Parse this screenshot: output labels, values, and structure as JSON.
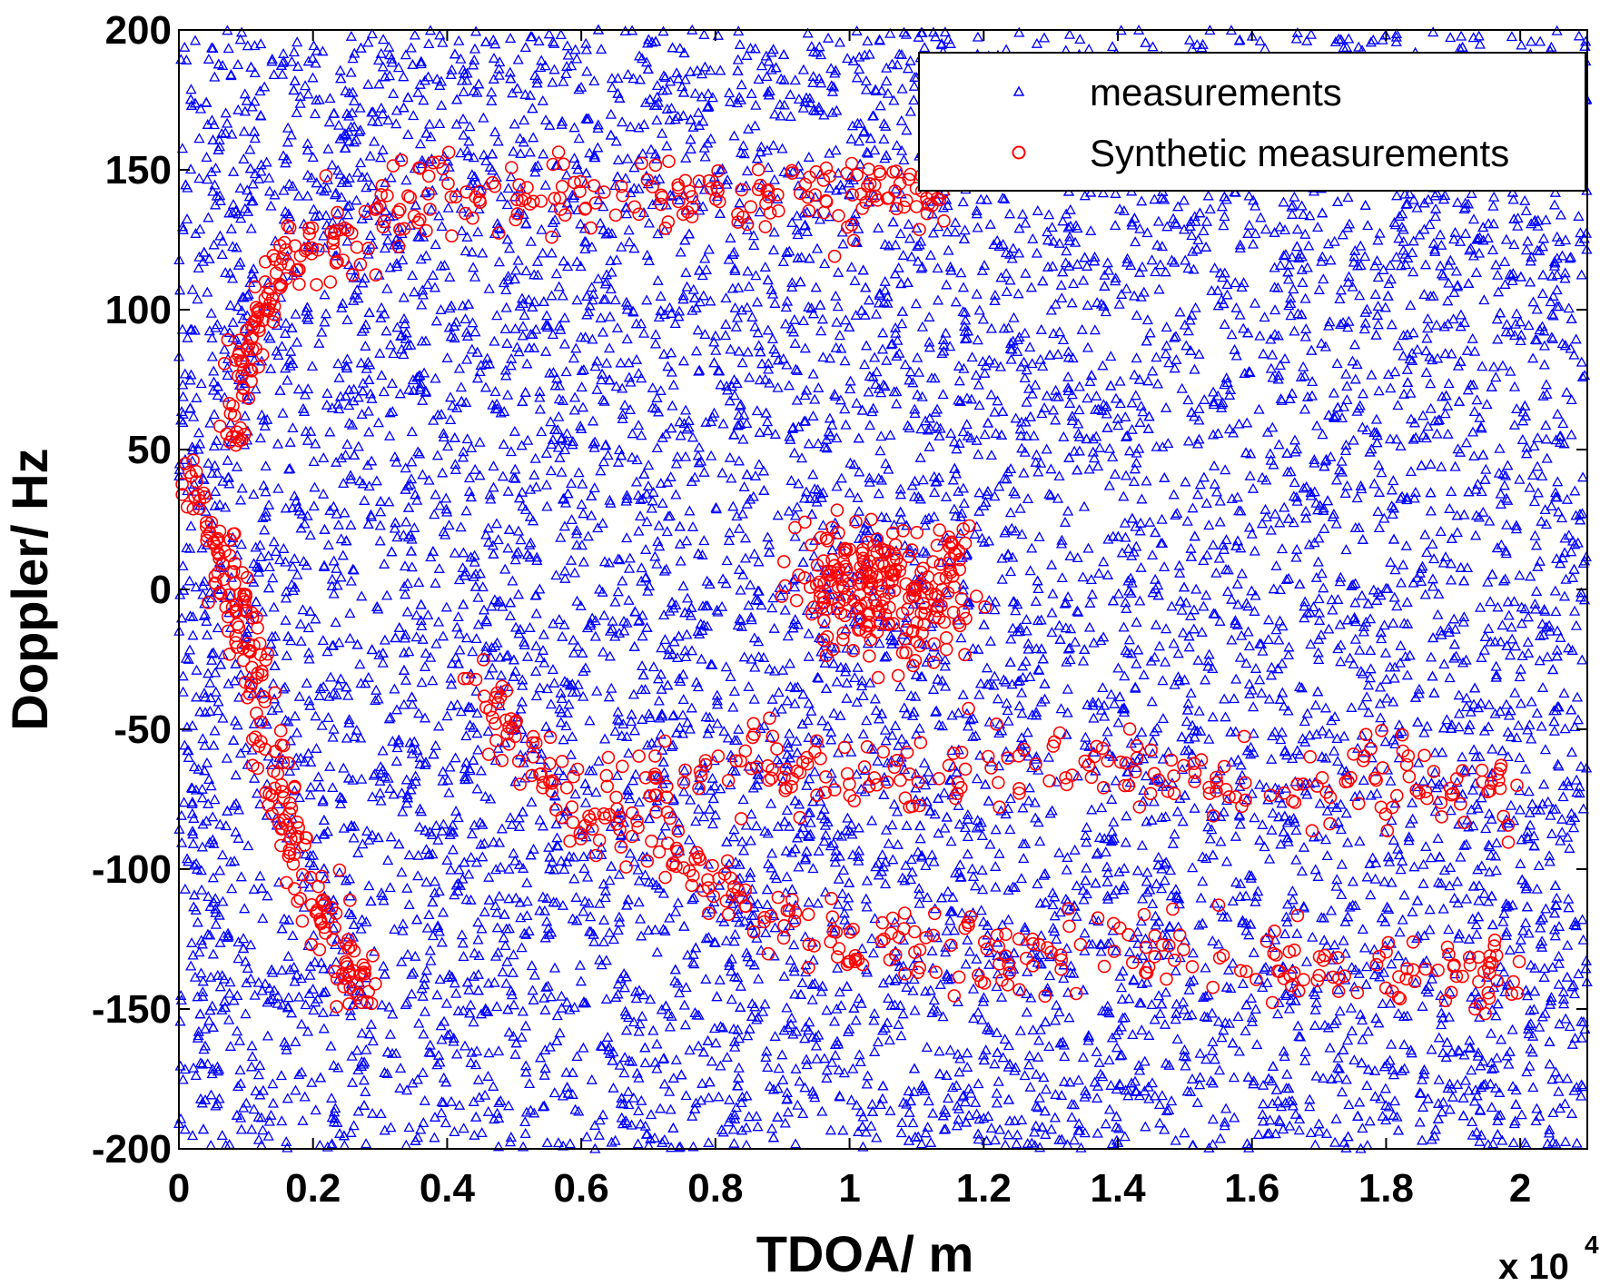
{
  "chart_data": {
    "type": "scatter",
    "xlabel": "TDOA/ m",
    "ylabel": "Doppler/ Hz",
    "x_multiplier": "x 10",
    "x_multiplier_exp": "4",
    "xlim": [
      0,
      2.1
    ],
    "ylim": [
      -200,
      200
    ],
    "x_ticks": [
      "0",
      "0.2",
      "0.4",
      "0.6",
      "0.8",
      "1",
      "1.2",
      "1.4",
      "1.6",
      "1.8",
      "2"
    ],
    "y_ticks": [
      "200",
      "150",
      "100",
      "50",
      "0",
      "-50",
      "-100",
      "-150",
      "-200"
    ],
    "grid": false,
    "legend_position": "top-right",
    "colors": {
      "measurements": "#0000ff",
      "synthetic": "#ff0000"
    },
    "series": [
      {
        "name": "measurements",
        "marker": "triangle",
        "color": "#0000ff",
        "count": 9000,
        "distribution": "uniform clutter over full axis range",
        "points": [
          [
            0.1,
            180
          ],
          [
            0.5,
            120
          ],
          [
            1.5,
            -170
          ],
          [
            1.9,
            60
          ],
          [
            0.3,
            -20
          ],
          [
            1.2,
            140
          ]
        ]
      },
      {
        "name": "Synthetic measurements",
        "marker": "circle",
        "color": "#ff0000",
        "tracks": [
          {
            "points": [
              [
                0.0,
                45
              ],
              [
                0.05,
                20
              ],
              [
                0.08,
                0
              ],
              [
                0.1,
                -15
              ],
              [
                0.13,
                -50
              ],
              [
                0.16,
                -85
              ],
              [
                0.2,
                -110
              ],
              [
                0.25,
                -135
              ],
              [
                0.28,
                -145
              ]
            ]
          },
          {
            "points": [
              [
                0.08,
                50
              ],
              [
                0.1,
                80
              ],
              [
                0.13,
                105
              ],
              [
                0.17,
                120
              ],
              [
                0.25,
                125
              ],
              [
                0.35,
                138
              ],
              [
                0.5,
                142
              ],
              [
                0.65,
                140
              ],
              [
                0.8,
                140
              ],
              [
                0.95,
                140
              ],
              [
                1.05,
                145
              ],
              [
                1.15,
                140
              ]
            ]
          },
          {
            "points": [
              [
                0.45,
                -30
              ],
              [
                0.5,
                -55
              ],
              [
                0.6,
                -80
              ],
              [
                0.75,
                -95
              ],
              [
                0.85,
                -115
              ],
              [
                1.0,
                -125
              ],
              [
                1.15,
                -128
              ],
              [
                1.3,
                -133
              ],
              [
                1.5,
                -130
              ],
              [
                1.7,
                -137
              ],
              [
                1.9,
                -137
              ],
              [
                2.0,
                -140
              ]
            ]
          },
          {
            "points": [
              [
                0.6,
                -70
              ],
              [
                0.8,
                -65
              ],
              [
                0.95,
                -62
              ],
              [
                1.1,
                -67
              ],
              [
                1.3,
                -63
              ],
              [
                1.5,
                -67
              ],
              [
                1.7,
                -70
              ],
              [
                1.85,
                -70
              ],
              [
                2.0,
                -70
              ]
            ]
          },
          {
            "points": [
              [
                0.95,
                0
              ],
              [
                1.0,
                5
              ],
              [
                1.05,
                0
              ],
              [
                1.1,
                -10
              ],
              [
                1.15,
                5
              ]
            ]
          }
        ]
      }
    ]
  }
}
